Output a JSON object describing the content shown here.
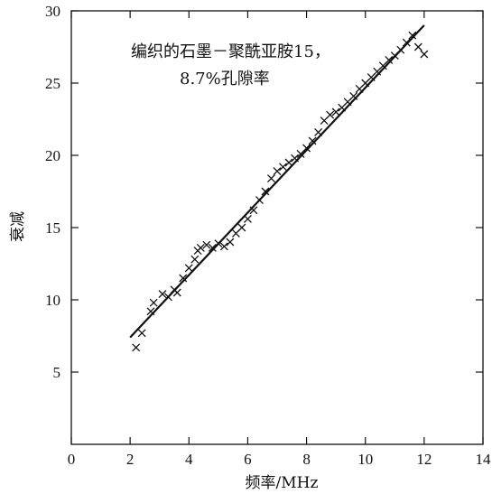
{
  "chart_data": {
    "type": "scatter",
    "annotation_lines": [
      "编织的石墨－聚酰亚胺15，",
      "8.7%孔隙率"
    ],
    "xlabel": "频率/MHz",
    "ylabel": "衰减",
    "xlim": [
      0,
      14
    ],
    "ylim": [
      0,
      30
    ],
    "xticks": [
      0,
      2,
      4,
      6,
      8,
      10,
      12,
      14
    ],
    "yticks": [
      5,
      10,
      15,
      20,
      25,
      30
    ],
    "grid": false,
    "marker": "x",
    "points": [
      [
        2.2,
        6.7
      ],
      [
        2.4,
        7.7
      ],
      [
        2.7,
        9.2
      ],
      [
        2.8,
        9.8
      ],
      [
        3.1,
        10.4
      ],
      [
        3.3,
        10.2
      ],
      [
        3.5,
        10.7
      ],
      [
        3.6,
        10.5
      ],
      [
        3.8,
        11.5
      ],
      [
        4.0,
        12.2
      ],
      [
        4.2,
        12.8
      ],
      [
        4.3,
        13.4
      ],
      [
        4.4,
        13.6
      ],
      [
        4.6,
        13.8
      ],
      [
        4.8,
        13.6
      ],
      [
        5.0,
        13.9
      ],
      [
        5.2,
        13.7
      ],
      [
        5.4,
        14.0
      ],
      [
        5.6,
        14.6
      ],
      [
        5.8,
        15.0
      ],
      [
        6.0,
        15.6
      ],
      [
        6.2,
        16.2
      ],
      [
        6.4,
        16.9
      ],
      [
        6.6,
        17.5
      ],
      [
        6.8,
        18.4
      ],
      [
        7.0,
        18.9
      ],
      [
        7.2,
        19.2
      ],
      [
        7.4,
        19.5
      ],
      [
        7.6,
        19.8
      ],
      [
        7.8,
        20.1
      ],
      [
        8.0,
        20.5
      ],
      [
        8.2,
        21.0
      ],
      [
        8.4,
        21.6
      ],
      [
        8.6,
        22.4
      ],
      [
        8.8,
        22.8
      ],
      [
        9.0,
        23.0
      ],
      [
        9.2,
        23.3
      ],
      [
        9.4,
        23.7
      ],
      [
        9.6,
        24.1
      ],
      [
        9.8,
        24.6
      ],
      [
        10.0,
        25.0
      ],
      [
        10.2,
        25.4
      ],
      [
        10.4,
        25.8
      ],
      [
        10.6,
        26.2
      ],
      [
        10.8,
        26.6
      ],
      [
        11.0,
        26.9
      ],
      [
        11.2,
        27.3
      ],
      [
        11.4,
        27.8
      ],
      [
        11.6,
        28.3
      ],
      [
        11.8,
        27.5
      ],
      [
        12.0,
        27.0
      ]
    ],
    "fit_line": {
      "x": [
        2.0,
        12.0
      ],
      "y": [
        7.4,
        29.0
      ]
    }
  }
}
